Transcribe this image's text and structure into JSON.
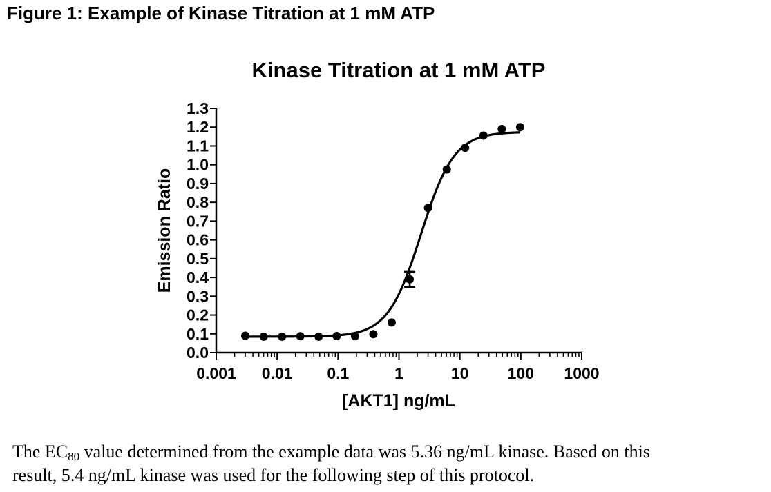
{
  "figure_caption": "Figure 1: Example of Kinase Titration at 1 mM ATP",
  "body_text": {
    "line1_pre": "The EC",
    "subscript": "80",
    "line1_post": " value determined from the example data was 5.36 ng/mL kinase.  Based on this",
    "line2": "result, 5.4 ng/mL kinase was used for the following step of this protocol."
  },
  "chart_data": {
    "type": "scatter",
    "title": "Kinase Titration at 1 mM ATP",
    "xlabel": "[AKT1] ng/mL",
    "ylabel": "Emission Ratio",
    "xscale": "log",
    "xlim": [
      0.001,
      1000
    ],
    "ylim": [
      0.0,
      1.3
    ],
    "x_ticks": [
      "0.001",
      "0.01",
      "0.1",
      "1",
      "10",
      "100",
      "1000"
    ],
    "y_ticks": [
      "0.0",
      "0.1",
      "0.2",
      "0.3",
      "0.4",
      "0.5",
      "0.6",
      "0.7",
      "0.8",
      "0.9",
      "1.0",
      "1.1",
      "1.2",
      "1.3"
    ],
    "grid": false,
    "series": [
      {
        "name": "AKT1",
        "x": [
          0.003,
          0.006,
          0.012,
          0.024,
          0.048,
          0.095,
          0.19,
          0.38,
          0.76,
          1.5,
          3.0,
          6.1,
          12.2,
          24.4,
          48.8,
          97.6
        ],
        "y": [
          0.09,
          0.085,
          0.085,
          0.087,
          0.085,
          0.088,
          0.087,
          0.098,
          0.16,
          0.39,
          0.77,
          0.975,
          1.09,
          1.155,
          1.19,
          1.2
        ],
        "error": [
          0,
          0,
          0,
          0,
          0,
          0,
          0,
          0,
          0,
          0.04,
          0,
          0,
          0,
          0,
          0,
          0
        ]
      }
    ],
    "fit": {
      "model": "sigmoidal dose-response",
      "bottom": 0.085,
      "top": 1.175,
      "ec50": 2.3,
      "hill": 1.6
    }
  }
}
